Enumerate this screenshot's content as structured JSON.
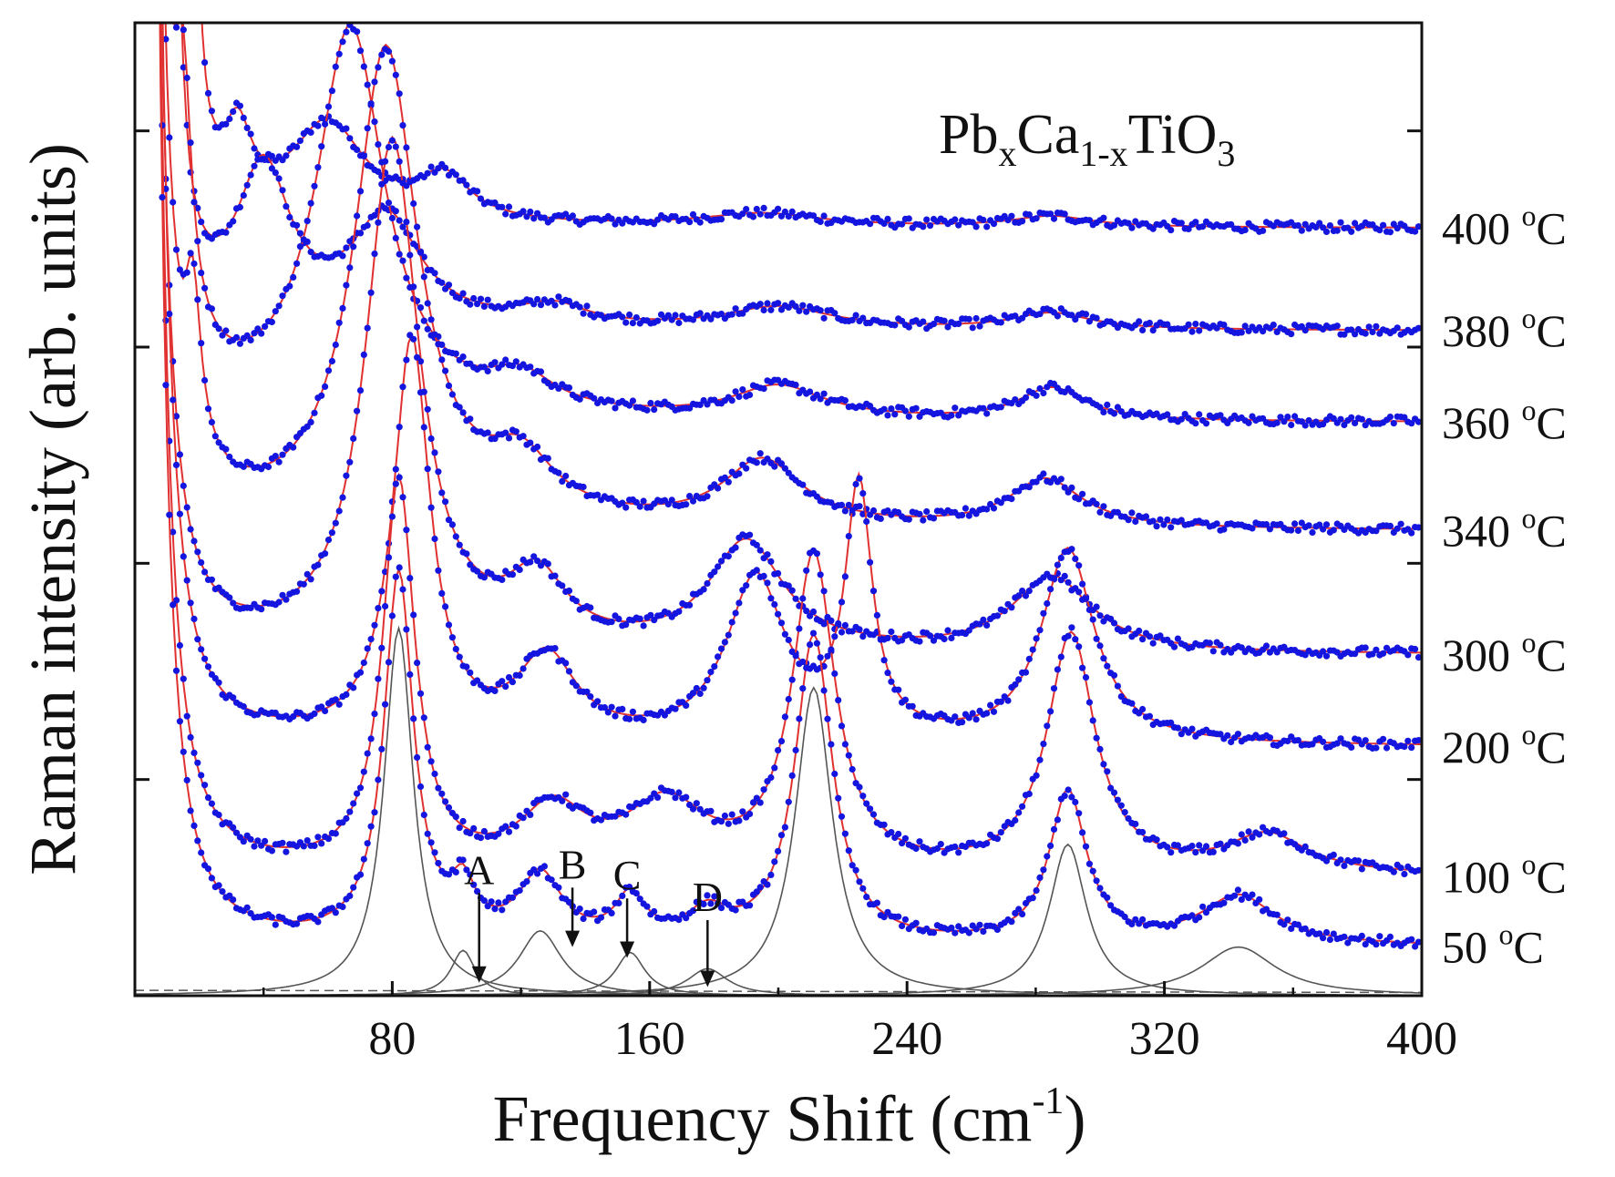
{
  "chart_data": {
    "type": "line",
    "title": {
      "parts": [
        {
          "text": "Pb",
          "sub": false
        },
        {
          "text": "x",
          "sub": true
        },
        {
          "text": "Ca",
          "sub": false
        },
        {
          "text": "1-x",
          "sub": true
        },
        {
          "text": "TiO",
          "sub": false
        },
        {
          "text": "3",
          "sub": true
        }
      ]
    },
    "xlabel": {
      "main": "Frequency Shift  (cm",
      "sup": "-1",
      "close": ")"
    },
    "ylabel": "Raman intensity  (arb. units)",
    "xlim": [
      0,
      400
    ],
    "ylim": [
      0,
      9
    ],
    "x_ticks": [
      80,
      160,
      240,
      320,
      400
    ],
    "grid": false,
    "colors": {
      "data_points": "#1515e0",
      "fit_line": "#e03030",
      "component_line": "#555555",
      "axis": "#111111"
    },
    "series": [
      {
        "name": "400 °C",
        "temp": "400",
        "unit": "C",
        "offset": 7.1,
        "peaks": [
          [
            2,
            30,
            5
          ],
          [
            18,
            3.5,
            4
          ],
          [
            32,
            0.65,
            10
          ],
          [
            60,
            0.9,
            28
          ],
          [
            96,
            0.4,
            20
          ],
          [
            195,
            0.12,
            45
          ],
          [
            285,
            0.1,
            30
          ]
        ]
      },
      {
        "name": "380 °C",
        "temp": "380",
        "unit": "C",
        "offset": 6.15,
        "peaks": [
          [
            3,
            20,
            5
          ],
          [
            12,
            3.5,
            5
          ],
          [
            40,
            1.4,
            20
          ],
          [
            78,
            1.0,
            26
          ],
          [
            130,
            0.18,
            25
          ],
          [
            200,
            0.2,
            40
          ],
          [
            285,
            0.15,
            30
          ]
        ]
      },
      {
        "name": "360 °C",
        "temp": "360",
        "unit": "C",
        "offset": 5.3,
        "peaks": [
          [
            3,
            25,
            6
          ],
          [
            15,
            2.0,
            6
          ],
          [
            67,
            3.6,
            26
          ],
          [
            120,
            0.3,
            25
          ],
          [
            200,
            0.3,
            35
          ],
          [
            285,
            0.3,
            25
          ]
        ]
      },
      {
        "name": "340 °C",
        "temp": "340",
        "unit": "C",
        "offset": 4.3,
        "peaks": [
          [
            3,
            25,
            6
          ],
          [
            18,
            1.4,
            6
          ],
          [
            78,
            4.4,
            24
          ],
          [
            120,
            0.5,
            25
          ],
          [
            195,
            0.6,
            30
          ],
          [
            283,
            0.45,
            28
          ]
        ]
      },
      {
        "name": "300 °C",
        "temp": "300",
        "unit": "C",
        "offset": 3.15,
        "peaks": [
          [
            3,
            25,
            6
          ],
          [
            80,
            4.7,
            20
          ],
          [
            125,
            0.6,
            22
          ],
          [
            190,
            1.0,
            28
          ],
          [
            285,
            0.7,
            30
          ]
        ]
      },
      {
        "name": "200 °C",
        "temp": "200",
        "unit": "C",
        "offset": 2.3,
        "peaks": [
          [
            3,
            30,
            6
          ],
          [
            86,
            3.7,
            14
          ],
          [
            128,
            0.75,
            22
          ],
          [
            193,
            1.5,
            22
          ],
          [
            225,
            2.3,
            10
          ],
          [
            290,
            1.8,
            20
          ]
        ]
      },
      {
        "name": "100 °C",
        "temp": "100",
        "unit": "C",
        "offset": 1.1,
        "peaks": [
          [
            3,
            30,
            6
          ],
          [
            82,
            3.6,
            12
          ],
          [
            130,
            0.55,
            25
          ],
          [
            165,
            0.6,
            30
          ],
          [
            211,
            2.9,
            16
          ],
          [
            291,
            2.2,
            18
          ],
          [
            352,
            0.35,
            30
          ]
        ]
      },
      {
        "name": "50 °C",
        "temp": "50",
        "unit": "C",
        "offset": 0.45,
        "peaks": [
          [
            3,
            30,
            6
          ],
          [
            82,
            3.4,
            11
          ],
          [
            102,
            0.42,
            9
          ],
          [
            126,
            0.6,
            16
          ],
          [
            154,
            0.4,
            11
          ],
          [
            178,
            0.25,
            15
          ],
          [
            211,
            2.85,
            14
          ],
          [
            290,
            1.4,
            14
          ],
          [
            343,
            0.45,
            28
          ]
        ]
      }
    ],
    "component_peaks": [
      {
        "x0": 82,
        "h": 3.4,
        "w": 11
      },
      {
        "x0": 102,
        "h": 0.42,
        "w": 9
      },
      {
        "x0": 126,
        "h": 0.6,
        "w": 16
      },
      {
        "x0": 154,
        "h": 0.4,
        "w": 11
      },
      {
        "x0": 178,
        "h": 0.25,
        "w": 15
      },
      {
        "x0": 211,
        "h": 2.85,
        "w": 14
      },
      {
        "x0": 290,
        "h": 1.4,
        "w": 14
      },
      {
        "x0": 343,
        "h": 0.45,
        "w": 28
      }
    ],
    "annotations": [
      {
        "label": "A",
        "x": 107,
        "y_tip": 0.12,
        "y_tail": 0.95
      },
      {
        "label": "B",
        "x": 136,
        "y_tip": 0.45,
        "y_tail": 1.0
      },
      {
        "label": "C",
        "x": 153,
        "y_tip": 0.35,
        "y_tail": 0.9
      },
      {
        "label": "D",
        "x": 178,
        "y_tip": 0.08,
        "y_tail": 0.7
      }
    ]
  }
}
